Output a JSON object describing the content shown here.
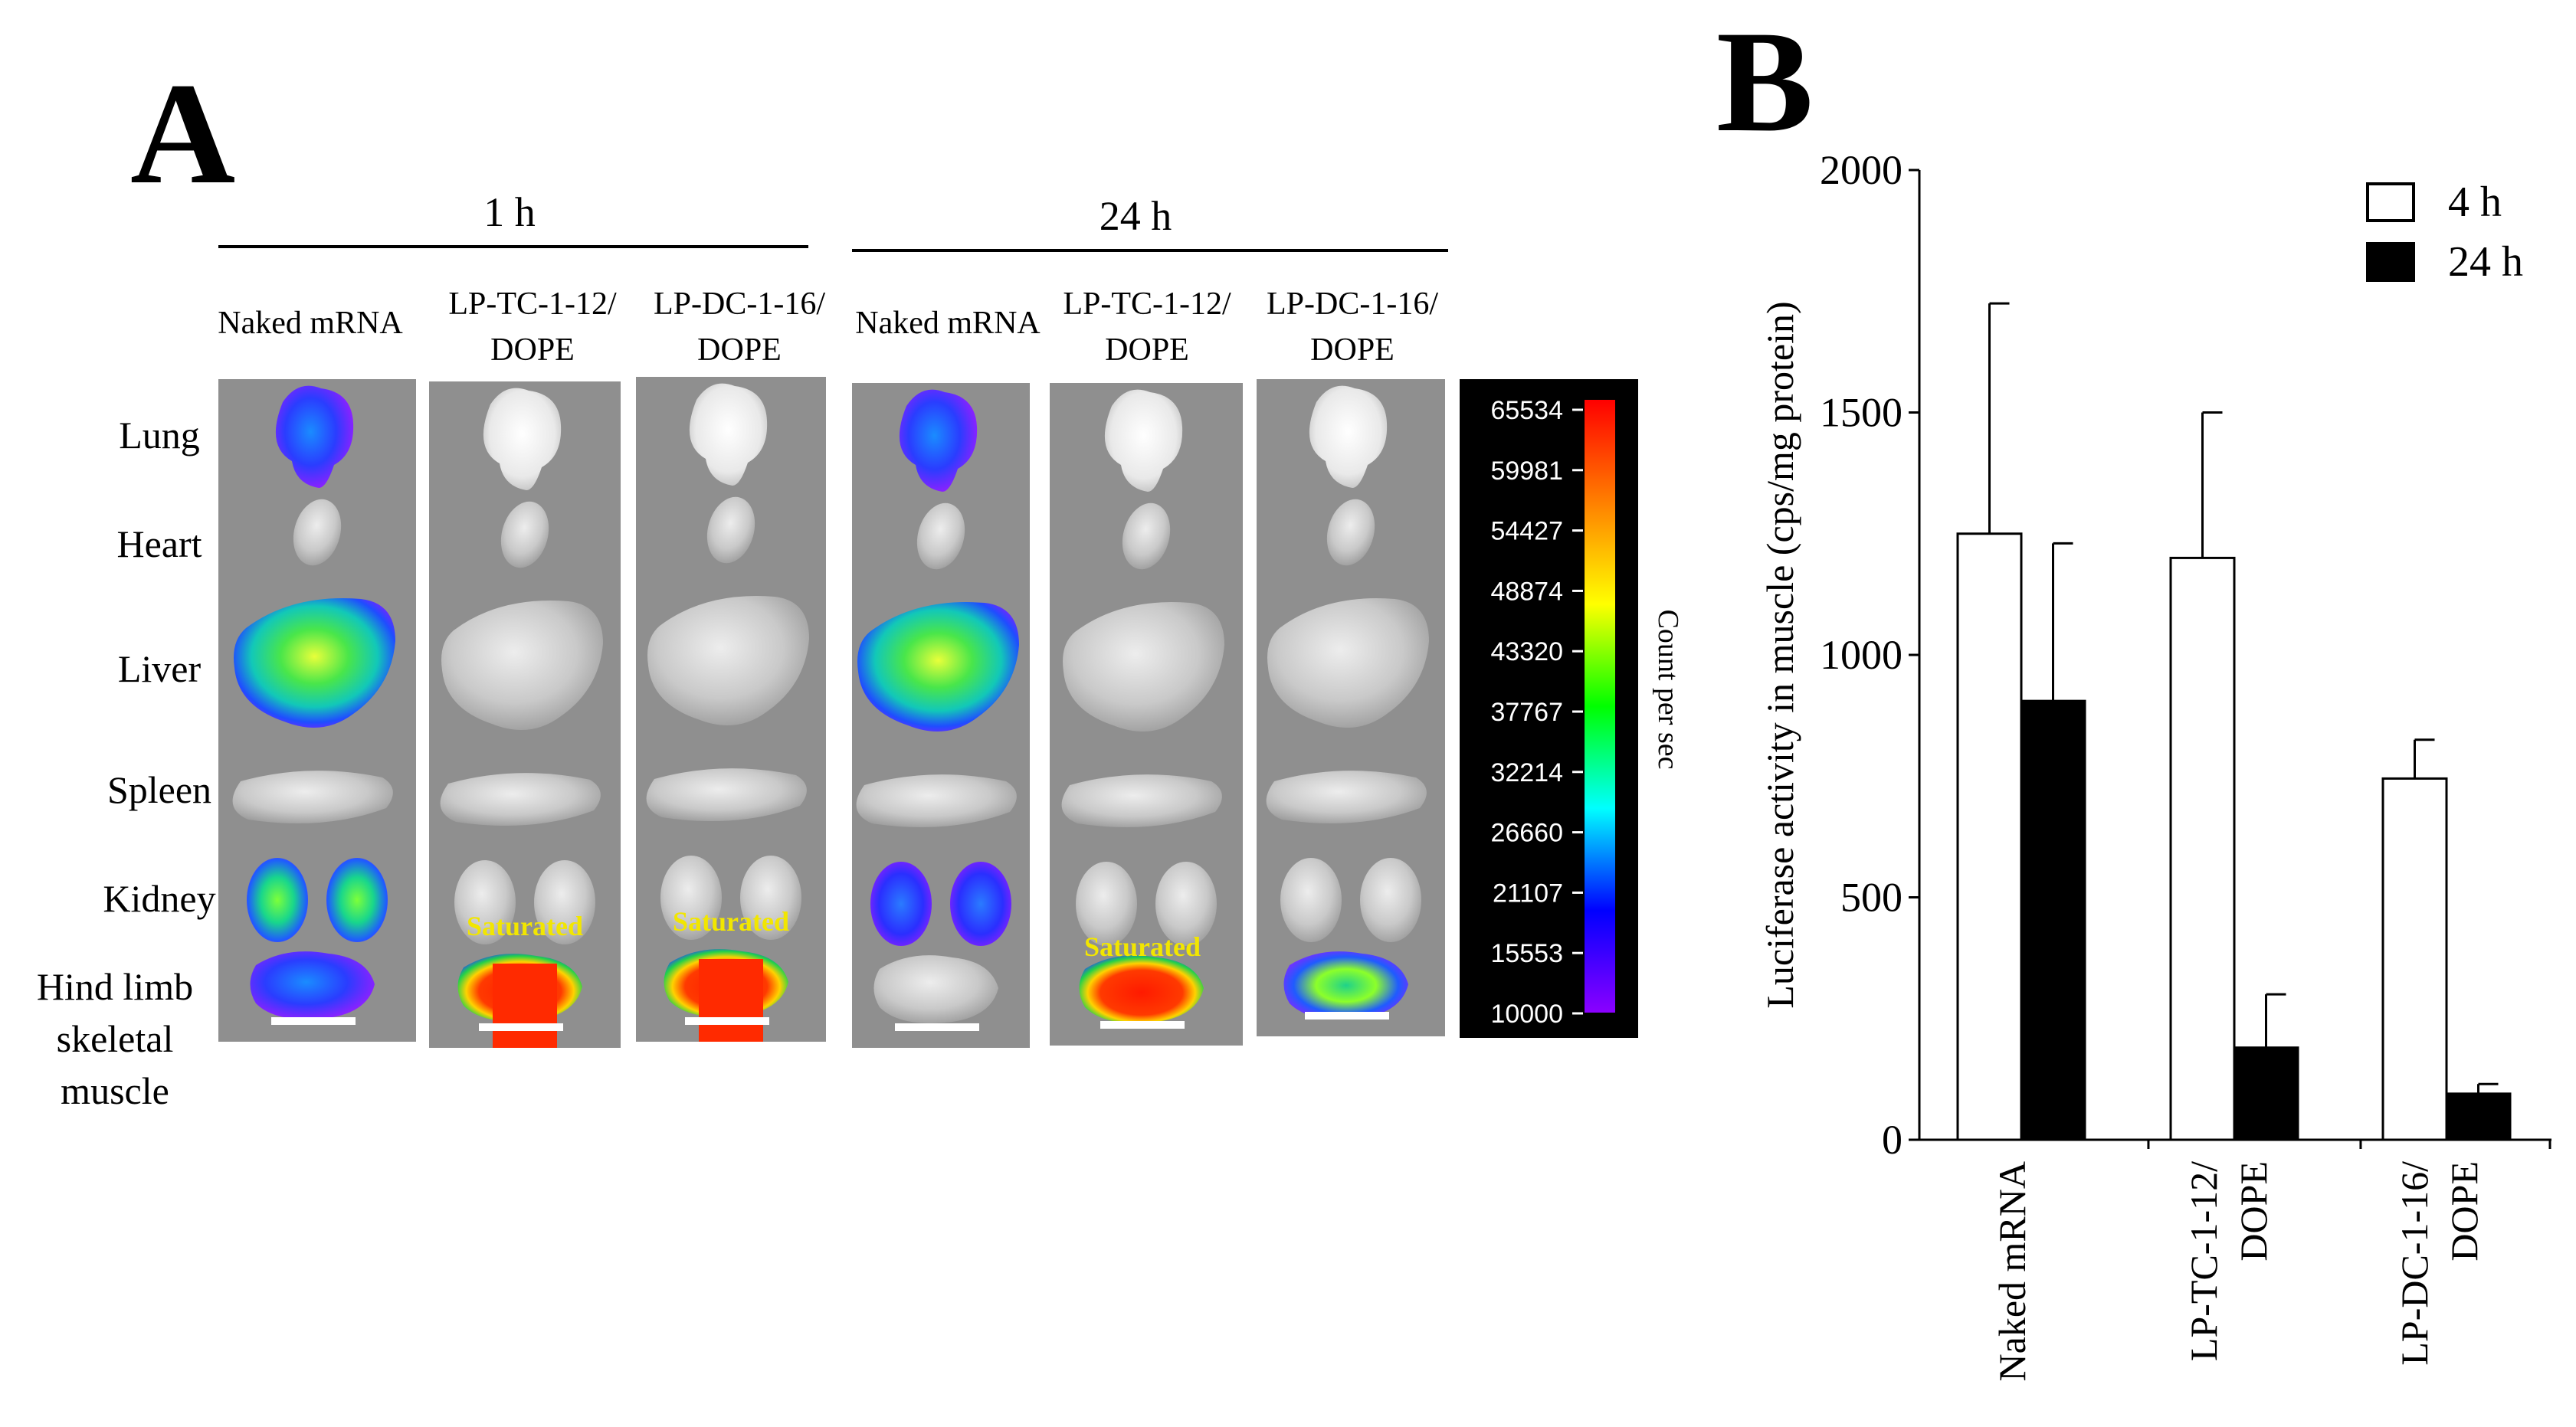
{
  "panel_a": {
    "label": "A",
    "groups": [
      {
        "time": "1 h",
        "conditions": [
          "Naked mRNA",
          "LP-TC-1-12/ DOPE",
          "LP-DC-1-16/ DOPE"
        ]
      },
      {
        "time": "24 h",
        "conditions": [
          "Naked mRNA",
          "LP-TC-1-12/ DOPE",
          "LP-DC-1-16/ DOPE"
        ]
      }
    ],
    "condition_lines": {
      "naked": [
        "Naked mRNA"
      ],
      "tc": [
        "LP-TC-1-12/",
        "DOPE"
      ],
      "dc": [
        "LP-DC-1-16/",
        "DOPE"
      ]
    },
    "organs": [
      "Lung",
      "Heart",
      "Liver",
      "Spleen",
      "Kidney"
    ],
    "muscle_label_lines": [
      "Hind limb",
      "skeletal",
      "muscle"
    ],
    "saturated_label": "Saturated",
    "colorbar": {
      "ticks": [
        "65534",
        "59981",
        "54427",
        "48874",
        "43320",
        "37767",
        "32214",
        "26660",
        "21107",
        "15553",
        "10000"
      ],
      "label": "Count per sec",
      "colors": [
        "#ff0000",
        "#ff7f00",
        "#ffff00",
        "#00ff00",
        "#00ffff",
        "#0000ff",
        "#8b00ff"
      ]
    }
  },
  "chart_data": {
    "type": "bar",
    "panel_label": "B",
    "ylabel": "Luciferase  activity  in muscle (cps/mg protein)",
    "xlabel": "",
    "ylim": [
      0,
      2000
    ],
    "yticks": [
      0,
      500,
      1000,
      1500,
      2000
    ],
    "categories": [
      "Naked mRNA",
      "LP-TC-1-12/ DOPE",
      "LP-DC-1-16/ DOPE"
    ],
    "category_lines": [
      [
        "Naked mRNA"
      ],
      [
        "LP-TC-1-12/",
        "DOPE"
      ],
      [
        "LP-DC-1-16/",
        "DOPE"
      ]
    ],
    "series": [
      {
        "name": "4 h",
        "fill": "#ffffff",
        "values": [
          1250,
          1200,
          745
        ],
        "errors": [
          475,
          300,
          80
        ]
      },
      {
        "name": "24 h",
        "fill": "#000000",
        "values": [
          905,
          190,
          95
        ],
        "errors": [
          325,
          110,
          20
        ]
      }
    ],
    "legend_position": "top-right"
  }
}
